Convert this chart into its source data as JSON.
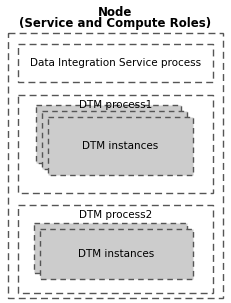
{
  "title_line1": "Node",
  "title_line2": "(Service and Compute Roles)",
  "title_fontsize": 8.5,
  "bg_color": "#ffffff",
  "border_color": "#555555",
  "box_fill_gray": "#cccccc",
  "dis_label": "Data Integration Service process",
  "dis_fontsize": 7.5,
  "dtm1_label": "DTM process1",
  "dtm2_label": "DTM process2",
  "dtm_proc_fontsize": 7.5,
  "dtm_inst_label": "DTM instances",
  "dtm_inst_fontsize": 7.5,
  "fig_w": 2.31,
  "fig_h": 3.03,
  "dpi": 100
}
